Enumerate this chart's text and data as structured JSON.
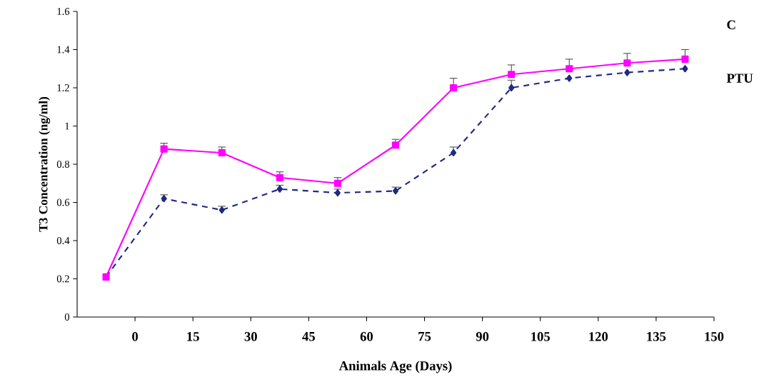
{
  "chart_data": {
    "type": "line",
    "xlabel": "Animals Age (Days)",
    "ylabel": "T3 Concentration (ng/ml)",
    "x": [
      -7.5,
      7.5,
      22.5,
      37.5,
      52.5,
      67.5,
      82.5,
      97.5,
      112.5,
      127.5,
      142.5
    ],
    "series": [
      {
        "name": "PTU",
        "color": "#1f2a80",
        "marker": "diamond",
        "line_style": "dashed",
        "values": [
          0.21,
          0.62,
          0.56,
          0.67,
          0.65,
          0.66,
          0.86,
          1.2,
          1.25,
          1.28,
          1.3
        ],
        "errors": [
          null,
          [
            0.62,
            0.64
          ],
          [
            0.56,
            0.58
          ],
          [
            0.67,
            0.69
          ],
          [
            0.65,
            0.67
          ],
          [
            0.66,
            0.68
          ],
          [
            0.86,
            0.89
          ],
          [
            1.2,
            1.24
          ],
          null,
          null,
          null
        ]
      },
      {
        "name": "C",
        "color": "#ff00ff",
        "marker": "square",
        "line_style": "solid",
        "values": [
          0.21,
          0.88,
          0.86,
          0.73,
          0.7,
          0.9,
          1.2,
          1.27,
          1.3,
          1.33,
          1.35
        ],
        "errors": [
          null,
          [
            0.88,
            0.91
          ],
          [
            0.86,
            0.89
          ],
          [
            0.73,
            0.76
          ],
          [
            0.7,
            0.73
          ],
          [
            0.9,
            0.93
          ],
          [
            1.2,
            1.25
          ],
          [
            1.27,
            1.32
          ],
          [
            1.3,
            1.35
          ],
          [
            1.33,
            1.38
          ],
          [
            1.35,
            1.4
          ]
        ]
      }
    ],
    "xlim": [
      -15,
      150
    ],
    "xticks": [
      0,
      15,
      30,
      45,
      60,
      75,
      90,
      105,
      120,
      135,
      150
    ],
    "ylim": [
      0,
      1.6
    ],
    "yticks": [
      0,
      0.2,
      0.4,
      0.6,
      0.8,
      1,
      1.2,
      1.4,
      1.6
    ],
    "grid": false,
    "legend": false
  }
}
